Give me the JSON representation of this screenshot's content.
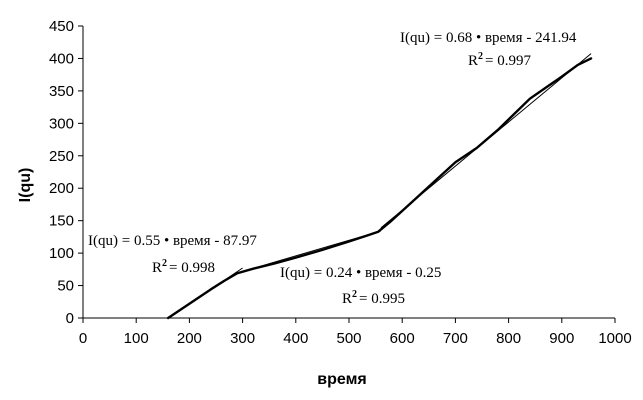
{
  "chart_data": {
    "type": "line",
    "xlabel": "время",
    "ylabel": "I(qu)",
    "xlim": [
      0,
      1000
    ],
    "ylim": [
      0,
      450
    ],
    "x_ticks": [
      0,
      100,
      200,
      300,
      400,
      500,
      600,
      700,
      800,
      900,
      1000
    ],
    "y_ticks": [
      0,
      50,
      100,
      150,
      200,
      250,
      300,
      350,
      400,
      450
    ],
    "grid": false,
    "legend": "none",
    "series": [
      {
        "points": [
          {
            "x": 160,
            "y": 0
          },
          {
            "x": 200,
            "y": 22
          },
          {
            "x": 240,
            "y": 44
          },
          {
            "x": 265,
            "y": 57
          },
          {
            "x": 290,
            "y": 69
          },
          {
            "x": 320,
            "y": 76
          },
          {
            "x": 360,
            "y": 84
          },
          {
            "x": 400,
            "y": 93
          },
          {
            "x": 450,
            "y": 105
          },
          {
            "x": 500,
            "y": 118
          },
          {
            "x": 530,
            "y": 126
          },
          {
            "x": 555,
            "y": 133
          },
          {
            "x": 580,
            "y": 150
          },
          {
            "x": 620,
            "y": 180
          },
          {
            "x": 660,
            "y": 210
          },
          {
            "x": 700,
            "y": 240
          },
          {
            "x": 740,
            "y": 262
          },
          {
            "x": 780,
            "y": 290
          },
          {
            "x": 810,
            "y": 314
          },
          {
            "x": 840,
            "y": 338
          },
          {
            "x": 870,
            "y": 355
          },
          {
            "x": 900,
            "y": 372
          },
          {
            "x": 930,
            "y": 390
          },
          {
            "x": 955,
            "y": 400
          }
        ]
      }
    ],
    "trendlines": [
      {
        "slope": 0.55,
        "intercept": -87.97,
        "x_range": [
          160,
          300
        ]
      },
      {
        "slope": 0.24,
        "intercept": -0.25,
        "x_range": [
          300,
          560
        ]
      },
      {
        "slope": 0.68,
        "intercept": -241.94,
        "x_range": [
          560,
          955
        ]
      }
    ],
    "annotations": [
      {
        "equation": "I(qu) = 0.55 • время - 87.97",
        "r2_label": "R",
        "r2_sup": "2",
        "r2_value": "= 0.998"
      },
      {
        "equation": "I(qu) = 0.24 • время - 0.25",
        "r2_label": "R",
        "r2_sup": "2",
        "r2_value": "= 0.995"
      },
      {
        "equation": "I(qu) = 0.68 • время - 241.94",
        "r2_label": "R",
        "r2_sup": "2",
        "r2_value": "= 0.997"
      }
    ]
  }
}
